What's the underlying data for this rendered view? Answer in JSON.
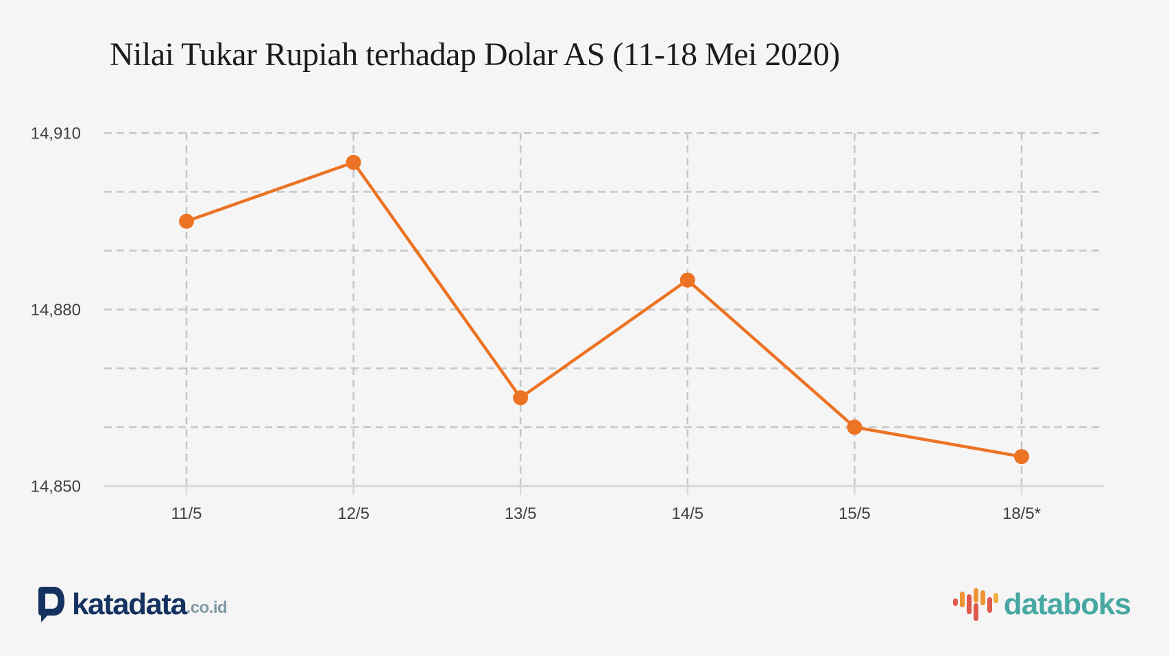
{
  "page": {
    "background": "#f5f5f5"
  },
  "title": "Nilai Tukar Rupiah terhadap Dolar AS (11-18 Mei 2020)",
  "chart_data": {
    "type": "line",
    "title": "Nilai Tukar Rupiah terhadap Dolar AS (11-18 Mei 2020)",
    "categories": [
      "11/5",
      "12/5",
      "13/5",
      "14/5",
      "15/5",
      "18/5*"
    ],
    "series": [
      {
        "values": [
          14895,
          14905,
          14865,
          14885,
          14860,
          14855
        ]
      }
    ],
    "ylim": [
      14850,
      14910
    ],
    "y_grid_step": 10,
    "y_tick_labels": [
      {
        "value": 14910,
        "label": "14,910"
      },
      {
        "value": 14880,
        "label": "14,880"
      },
      {
        "value": 14850,
        "label": "14,850"
      }
    ],
    "xlabel": "",
    "ylabel": "",
    "legend": "none",
    "grid": "dashed horizontal and vertical gridlines, solid baseline",
    "line_color": "#EC7323",
    "marker": "circle",
    "gridline_color": "#c6c6c6",
    "baseline_color": "#d8d8d8",
    "label_color": "#404040"
  },
  "footer": {
    "katadata": {
      "icon": "katadata-d-icon",
      "brand": "katadata",
      "suffix": ".co.id",
      "brand_color": "#14315F",
      "suffix_color": "#7F99A3"
    },
    "databoks": {
      "icon": "databoks-bars-icon",
      "brand": "databoks",
      "brand_color": "#47A8A2",
      "bar_colors": [
        "#DF5A4C",
        "#EF9434",
        "#F3AC41"
      ]
    }
  }
}
